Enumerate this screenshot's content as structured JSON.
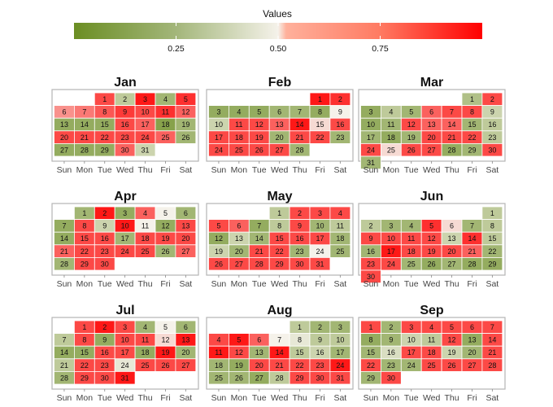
{
  "chart_data": {
    "type": "heatmap",
    "title": "",
    "legend": {
      "title": "Values",
      "placement": "top",
      "ticks": [
        0.25,
        0.5,
        0.75
      ],
      "tick_labels": [
        "0.25",
        "0.50",
        "0.75"
      ],
      "range": [
        0,
        1
      ]
    },
    "colors": {
      "low": "#6b8e23",
      "mid": "#f5f2ea",
      "high": "#ff0000"
    },
    "weekdays": [
      "Sun",
      "Mon",
      "Tue",
      "Wed",
      "Thu",
      "Fri",
      "Sat"
    ],
    "months": [
      {
        "name": "Jan",
        "start_weekday": 2,
        "values": [
          0.85,
          0.3,
          0.95,
          0.2,
          0.9,
          0.7,
          0.75,
          0.82,
          0.88,
          0.85,
          0.9,
          0.8,
          0.15,
          0.15,
          0.15,
          0.85,
          0.8,
          0.1,
          0.2,
          0.85,
          0.85,
          0.85,
          0.85,
          0.85,
          0.8,
          0.2,
          0.15,
          0.15,
          0.15,
          0.8,
          0.35
        ]
      },
      {
        "name": "Feb",
        "start_weekday": 5,
        "values": [
          0.95,
          0.9,
          0.15,
          0.15,
          0.15,
          0.2,
          0.2,
          0.15,
          0.5,
          0.35,
          0.85,
          0.85,
          0.8,
          0.95,
          0.55,
          0.85,
          0.85,
          0.85,
          0.85,
          0.2,
          0.85,
          0.85,
          0.2,
          0.85,
          0.85,
          0.85,
          0.85,
          0.2
        ]
      },
      {
        "name": "Mar",
        "start_weekday": 5,
        "values": [
          0.25,
          0.85,
          0.15,
          0.3,
          0.2,
          0.8,
          0.85,
          0.85,
          0.35,
          0.15,
          0.2,
          0.85,
          0.8,
          0.8,
          0.2,
          0.3,
          0.2,
          0.15,
          0.2,
          0.85,
          0.85,
          0.85,
          0.3,
          0.85,
          0.55,
          0.85,
          0.85,
          0.15,
          0.2,
          0.85,
          0.2
        ]
      },
      {
        "name": "Apr",
        "start_weekday": 1,
        "values": [
          0.2,
          0.95,
          0.15,
          0.8,
          0.5,
          0.2,
          0.15,
          0.85,
          0.35,
          0.95,
          0.5,
          0.15,
          0.85,
          0.15,
          0.85,
          0.85,
          0.2,
          0.85,
          0.85,
          0.85,
          0.8,
          0.85,
          0.85,
          0.85,
          0.85,
          0.2,
          0.8,
          0.2,
          0.85,
          0.85
        ]
      },
      {
        "name": "May",
        "start_weekday": 3,
        "values": [
          0.3,
          0.85,
          0.85,
          0.85,
          0.85,
          0.8,
          0.15,
          0.3,
          0.85,
          0.2,
          0.3,
          0.15,
          0.35,
          0.2,
          0.85,
          0.85,
          0.85,
          0.2,
          0.35,
          0.2,
          0.85,
          0.85,
          0.2,
          0.5,
          0.2,
          0.85,
          0.85,
          0.85,
          0.85,
          0.85,
          0.85
        ]
      },
      {
        "name": "Jun",
        "start_weekday": 6,
        "values": [
          0.3,
          0.3,
          0.2,
          0.2,
          0.9,
          0.55,
          0.2,
          0.3,
          0.85,
          0.85,
          0.85,
          0.85,
          0.35,
          0.9,
          0.3,
          0.2,
          0.95,
          0.85,
          0.85,
          0.85,
          0.8,
          0.2,
          0.85,
          0.85,
          0.2,
          0.15,
          0.2,
          0.15,
          0.15,
          0.85
        ]
      },
      {
        "name": "Jul",
        "start_weekday": 1,
        "values": [
          0.85,
          0.95,
          0.85,
          0.2,
          0.5,
          0.2,
          0.3,
          0.85,
          0.15,
          0.85,
          0.85,
          0.55,
          0.95,
          0.15,
          0.15,
          0.85,
          0.85,
          0.15,
          0.95,
          0.2,
          0.3,
          0.85,
          0.85,
          0.45,
          0.85,
          0.85,
          0.85,
          0.2,
          0.85,
          0.85,
          0.95
        ]
      },
      {
        "name": "Aug",
        "start_weekday": 4,
        "values": [
          0.3,
          0.2,
          0.2,
          0.85,
          0.95,
          0.8,
          0.5,
          0.45,
          0.3,
          0.3,
          0.95,
          0.85,
          0.2,
          0.95,
          0.3,
          0.35,
          0.2,
          0.2,
          0.15,
          0.85,
          0.85,
          0.85,
          0.85,
          0.95,
          0.2,
          0.2,
          0.15,
          0.3,
          0.85,
          0.85,
          0.85
        ]
      },
      {
        "name": "Sep",
        "start_weekday": 0,
        "values": [
          0.85,
          0.2,
          0.85,
          0.85,
          0.85,
          0.85,
          0.85,
          0.15,
          0.2,
          0.35,
          0.3,
          0.85,
          0.15,
          0.85,
          0.2,
          0.4,
          0.85,
          0.85,
          0.35,
          0.2,
          0.85,
          0.85,
          0.2,
          0.2,
          0.85,
          0.85,
          0.85,
          0.85,
          0.2,
          0.85
        ]
      }
    ]
  }
}
